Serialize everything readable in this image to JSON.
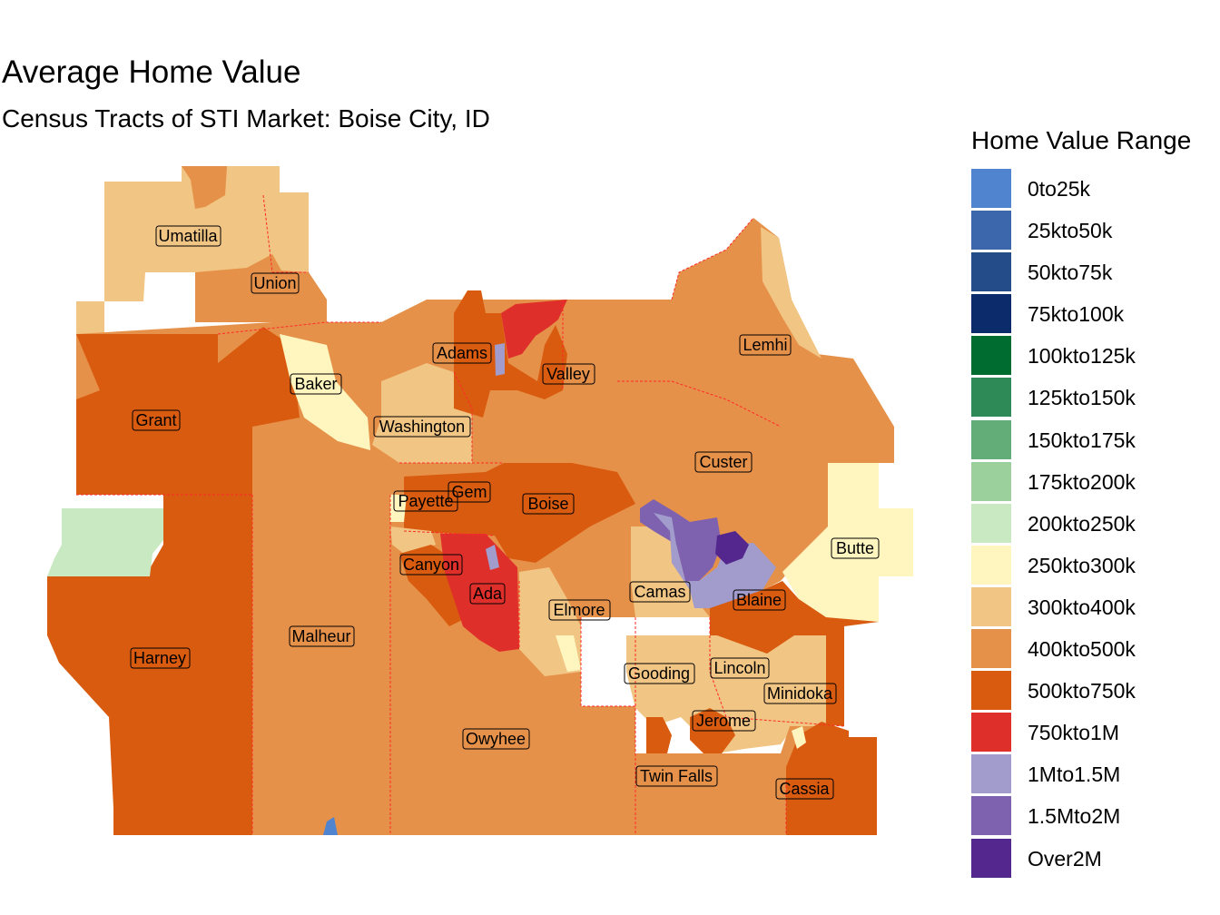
{
  "title": "Average Home Value",
  "subtitle": "Census Tracts of STI Market: Boise City, ID",
  "legend": {
    "title": "Home Value Range",
    "items": [
      {
        "label": "0to25k",
        "color": "#5184CF"
      },
      {
        "label": "25kto50k",
        "color": "#3C67AC"
      },
      {
        "label": "50kto75k",
        "color": "#234C88"
      },
      {
        "label": "75kto100k",
        "color": "#0B2B6B"
      },
      {
        "label": "100kto125k",
        "color": "#006C30"
      },
      {
        "label": "125kto150k",
        "color": "#2E8B57"
      },
      {
        "label": "150kto175k",
        "color": "#63AD79"
      },
      {
        "label": "175kto200k",
        "color": "#9BCF9B"
      },
      {
        "label": "200kto250k",
        "color": "#C8E9C2"
      },
      {
        "label": "250kto300k",
        "color": "#FFF6BF"
      },
      {
        "label": "300kto400k",
        "color": "#F1C583"
      },
      {
        "label": "400kto500k",
        "color": "#E69149"
      },
      {
        "label": "500kto750k",
        "color": "#D95B0F"
      },
      {
        "label": "750kto1M",
        "color": "#DF2F2A"
      },
      {
        "label": "1Mto1.5M",
        "color": "#A19CCB"
      },
      {
        "label": "1.5Mto2M",
        "color": "#7E62AF"
      },
      {
        "label": "Over2M",
        "color": "#54278F"
      }
    ]
  },
  "counties": [
    {
      "name": "Umatilla"
    },
    {
      "name": "Union"
    },
    {
      "name": "Baker"
    },
    {
      "name": "Grant"
    },
    {
      "name": "Adams"
    },
    {
      "name": "Valley"
    },
    {
      "name": "Washington"
    },
    {
      "name": "Lemhi"
    },
    {
      "name": "Custer"
    },
    {
      "name": "Payette"
    },
    {
      "name": "Gem"
    },
    {
      "name": "Boise"
    },
    {
      "name": "Butte"
    },
    {
      "name": "Canyon"
    },
    {
      "name": "Ada"
    },
    {
      "name": "Camas"
    },
    {
      "name": "Blaine"
    },
    {
      "name": "Elmore"
    },
    {
      "name": "Malheur"
    },
    {
      "name": "Harney"
    },
    {
      "name": "Gooding"
    },
    {
      "name": "Lincoln"
    },
    {
      "name": "Minidoka"
    },
    {
      "name": "Jerome"
    },
    {
      "name": "Owyhee"
    },
    {
      "name": "Twin Falls"
    },
    {
      "name": "Cassia"
    }
  ]
}
